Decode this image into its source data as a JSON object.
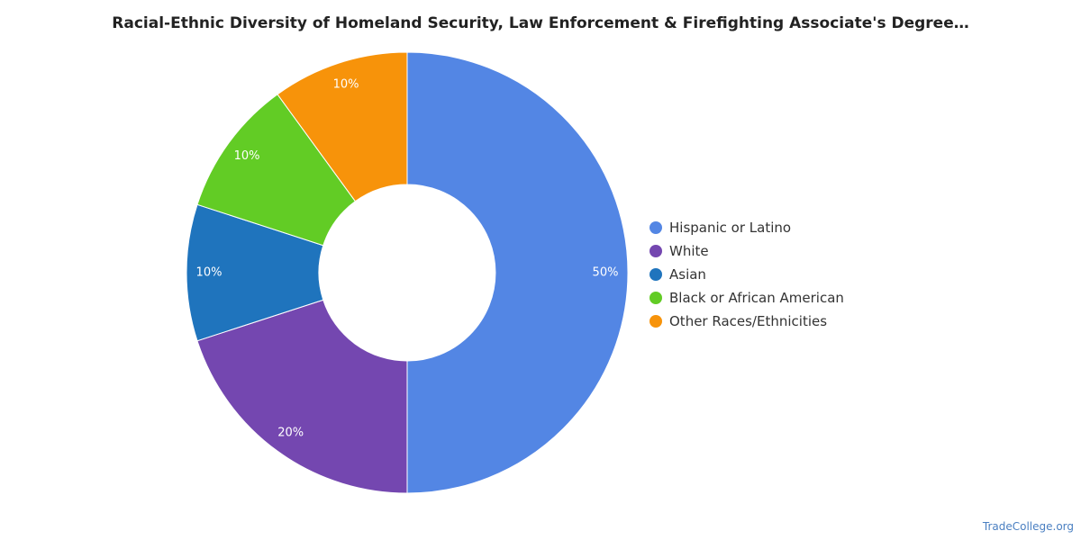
{
  "chart_data": {
    "type": "pie",
    "variant": "donut",
    "title": "Racial-Ethnic Diversity of Homeland Security, Law Enforcement & Firefighting Associate's Degree…",
    "categories": [
      "Hispanic or Latino",
      "White",
      "Asian",
      "Black or African American",
      "Other Races/Ethnicities"
    ],
    "values": [
      50,
      20,
      10,
      10,
      10
    ],
    "data_labels": [
      "50%",
      "20%",
      "10%",
      "10%",
      "10%"
    ],
    "colors": [
      "#5386e4",
      "#7447b0",
      "#1f74bd",
      "#62cc25",
      "#f7930a"
    ],
    "legend_placement": "right"
  },
  "source": "TradeCollege.org"
}
